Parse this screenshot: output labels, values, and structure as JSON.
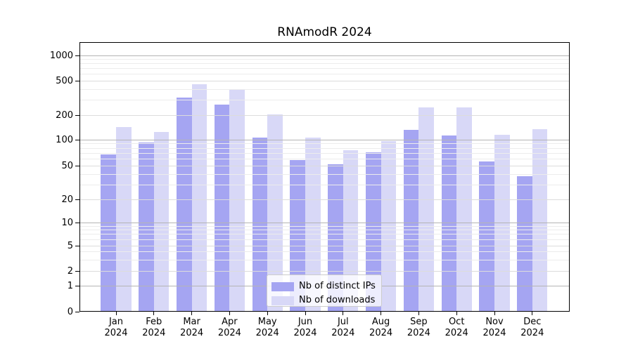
{
  "page": {
    "background_color": "#ffffff"
  },
  "chart_data": {
    "type": "bar",
    "title": "RNAmodR 2024",
    "months": [
      "Jan",
      "Feb",
      "Mar",
      "Apr",
      "May",
      "Jun",
      "Jul",
      "Aug",
      "Sep",
      "Oct",
      "Nov",
      "Dec"
    ],
    "year_label": "2024",
    "series": [
      {
        "name": "Nb of distinct IPs",
        "color": "#a5a5f2",
        "values": [
          68,
          94,
          320,
          265,
          107,
          59,
          52,
          72,
          132,
          113,
          56,
          38
        ]
      },
      {
        "name": "Nb of downloads",
        "color": "#d8d8f7",
        "values": [
          144,
          125,
          455,
          390,
          203,
          107,
          76,
          97,
          248,
          245,
          116,
          135
        ]
      }
    ],
    "yticks": [
      0,
      1,
      2,
      5,
      10,
      20,
      50,
      100,
      200,
      500,
      1000
    ],
    "ylim": [
      0,
      1400
    ],
    "yscale": "log-like (zero anchored at baseline, log spacing above 1)",
    "xlabel": "",
    "ylabel": "",
    "grid": true,
    "grid_on_top_of_bars": true,
    "legend_position": "lower center",
    "colors": {
      "decade_gridline": "#b4b4b4",
      "major_gridline": "#dcdcdc",
      "minor_gridline": "#ececec",
      "axis": "#000000"
    }
  }
}
